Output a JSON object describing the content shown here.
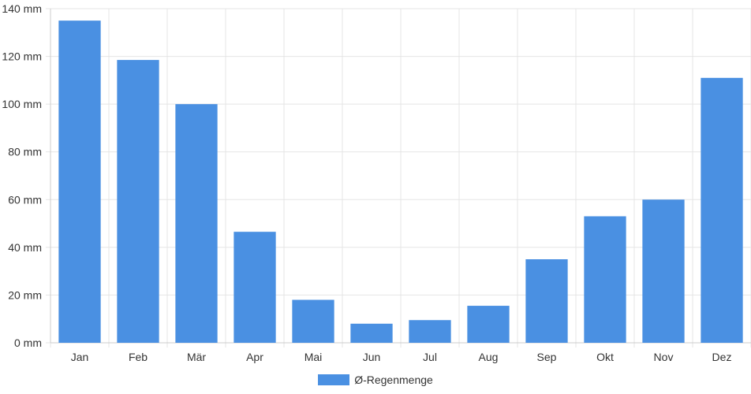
{
  "chart_data": {
    "type": "bar",
    "categories": [
      "Jan",
      "Feb",
      "Mär",
      "Apr",
      "Mai",
      "Jun",
      "Jul",
      "Aug",
      "Sep",
      "Okt",
      "Nov",
      "Dez"
    ],
    "series": [
      {
        "name": "Ø-Regenmenge",
        "values": [
          135,
          118.5,
          100,
          46.5,
          18,
          8,
          9.5,
          15.5,
          35,
          53,
          60,
          111
        ]
      }
    ],
    "y_unit": "mm",
    "ylim": [
      0,
      140
    ],
    "yticks": [
      0,
      20,
      40,
      60,
      80,
      100,
      120,
      140
    ],
    "y_tick_labels": [
      "0 mm",
      "20 mm",
      "40 mm",
      "60 mm",
      "80 mm",
      "100 mm",
      "120 mm",
      "140 mm"
    ],
    "grid": true,
    "legend_position": "bottom",
    "colors": {
      "bar": "#4a90e2",
      "grid": "#e5e5e5",
      "axis": "#cccccc"
    }
  }
}
